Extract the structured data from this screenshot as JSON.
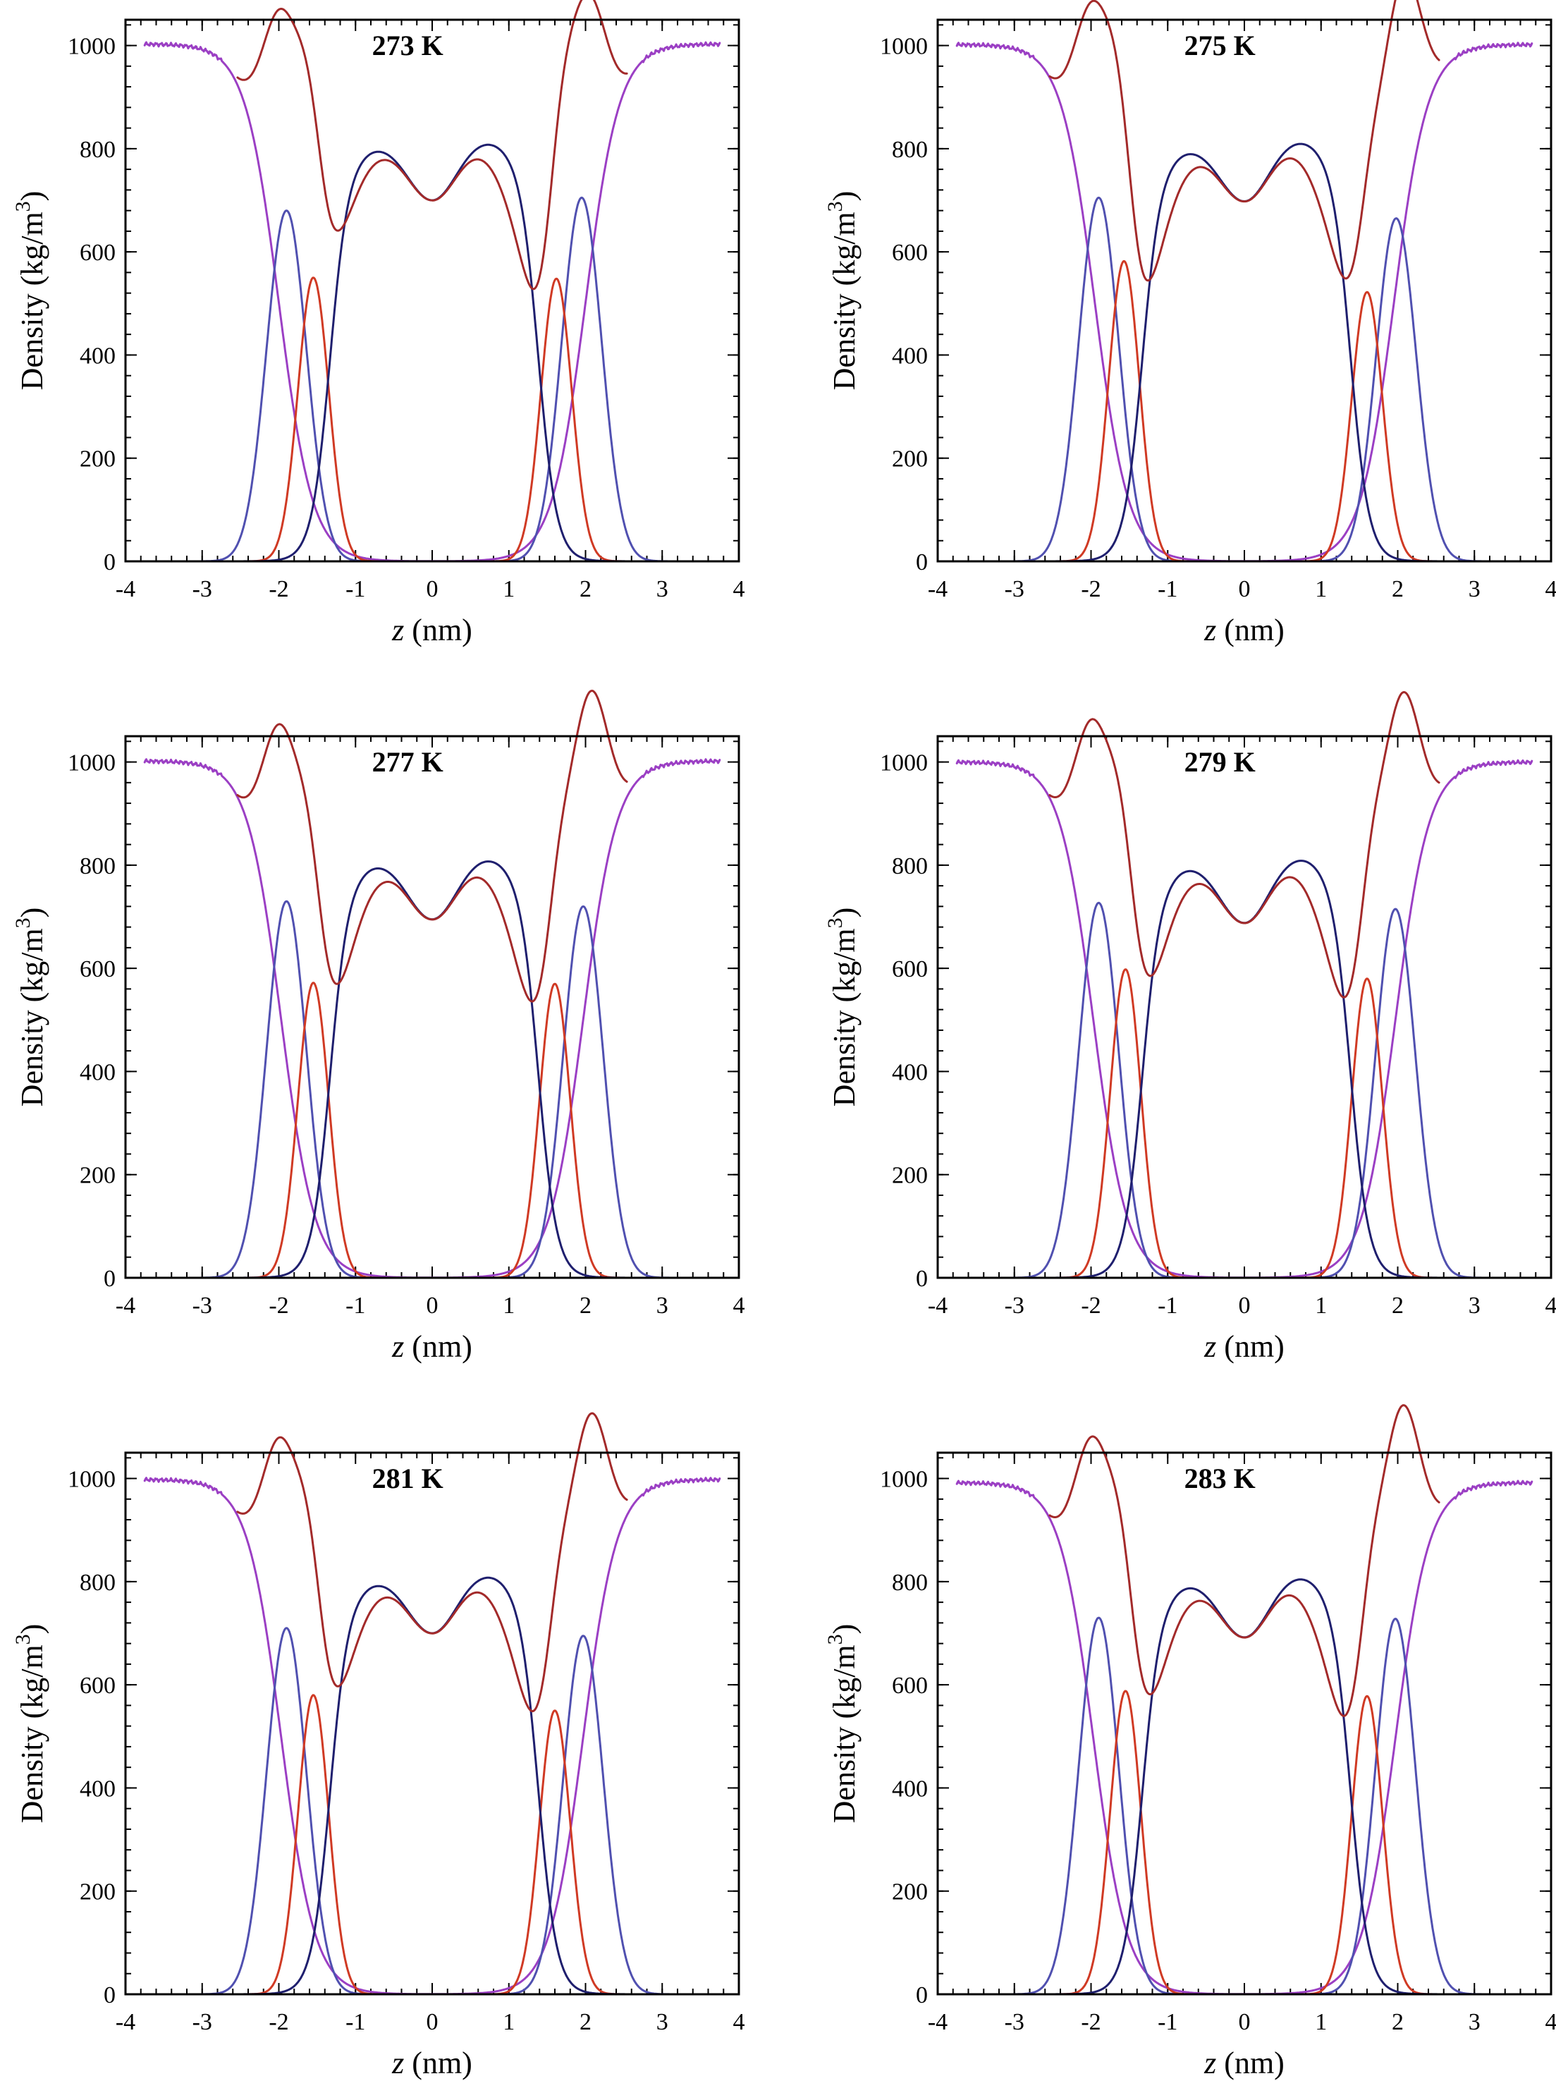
{
  "chart_data": [
    {
      "type": "line",
      "title": "273 K",
      "xlabel": "z (nm)",
      "ylabel": "Density (kg/m3)",
      "xlim": [
        -4,
        4
      ],
      "ylim": [
        0,
        1050
      ],
      "xticks": [
        "-4",
        "-3",
        "-2",
        "-1",
        "0",
        "1",
        "2",
        "3",
        "4"
      ],
      "yticks": [
        "0",
        "200",
        "400",
        "600",
        "800",
        "1000"
      ],
      "params": {
        "water_bulk": 1003,
        "water_half_left": -2.0,
        "water_half_right": 2.0,
        "water_width": 0.22,
        "total_peak_left": 1032,
        "total_peak_right": 1017,
        "head_left": [
          -1.9,
          680
        ],
        "head_right": [
          1.95,
          705
        ],
        "mid_left": [
          -1.55,
          550
        ],
        "mid_right": [
          1.62,
          548
        ],
        "tail_shoulder_left": 815,
        "tail_shoulder_right": 828,
        "tail_center": 700
      }
    },
    {
      "type": "line",
      "title": "275 K",
      "xlabel": "z (nm)",
      "ylabel": "Density (kg/m3)",
      "xlim": [
        -4,
        4
      ],
      "ylim": [
        0,
        1050
      ],
      "xticks": [
        "-4",
        "-3",
        "-2",
        "-1",
        "0",
        "1",
        "2",
        "3",
        "4"
      ],
      "yticks": [
        "0",
        "200",
        "400",
        "600",
        "800",
        "1000"
      ],
      "params": {
        "water_bulk": 1002,
        "water_half_left": -1.95,
        "water_half_right": 1.95,
        "water_width": 0.22,
        "total_peak_left": 1030,
        "total_peak_right": 1015,
        "head_left": [
          -1.9,
          705
        ],
        "head_right": [
          1.98,
          665
        ],
        "mid_left": [
          -1.57,
          582
        ],
        "mid_right": [
          1.6,
          522
        ],
        "tail_shoulder_left": 810,
        "tail_shoulder_right": 830,
        "tail_center": 698
      }
    },
    {
      "type": "line",
      "title": "277 K",
      "xlabel": "z (nm)",
      "ylabel": "Density (kg/m3)",
      "xlim": [
        -4,
        4
      ],
      "ylim": [
        0,
        1050
      ],
      "xticks": [
        "-4",
        "-3",
        "-2",
        "-1",
        "0",
        "1",
        "2",
        "3",
        "4"
      ],
      "yticks": [
        "0",
        "200",
        "400",
        "600",
        "800",
        "1000"
      ],
      "params": {
        "water_bulk": 1002,
        "water_half_left": -1.97,
        "water_half_right": 1.97,
        "water_width": 0.22,
        "total_peak_left": 1003,
        "total_peak_right": 1017,
        "head_left": [
          -1.9,
          730
        ],
        "head_right": [
          1.97,
          720
        ],
        "mid_left": [
          -1.55,
          572
        ],
        "mid_right": [
          1.6,
          570
        ],
        "tail_shoulder_left": 815,
        "tail_shoulder_right": 828,
        "tail_center": 695
      }
    },
    {
      "type": "line",
      "title": "279 K",
      "xlabel": "z (nm)",
      "ylabel": "Density (kg/m3)",
      "xlim": [
        -4,
        4
      ],
      "ylim": [
        0,
        1050
      ],
      "xticks": [
        "-4",
        "-3",
        "-2",
        "-1",
        "0",
        "1",
        "2",
        "3",
        "4"
      ],
      "yticks": [
        "0",
        "200",
        "400",
        "600",
        "800",
        "1000"
      ],
      "params": {
        "water_bulk": 1000,
        "water_half_left": -1.97,
        "water_half_right": 1.97,
        "water_width": 0.22,
        "total_peak_left": 1022,
        "total_peak_right": 1017,
        "head_left": [
          -1.9,
          727
        ],
        "head_right": [
          1.97,
          715
        ],
        "mid_left": [
          -1.55,
          598
        ],
        "mid_right": [
          1.6,
          580
        ],
        "tail_shoulder_left": 810,
        "tail_shoulder_right": 830,
        "tail_center": 688
      }
    },
    {
      "type": "line",
      "title": "281 K",
      "xlabel": "z (nm)",
      "ylabel": "Density (kg/m3)",
      "xlim": [
        -4,
        4
      ],
      "ylim": [
        0,
        1050
      ],
      "xticks": [
        "-4",
        "-3",
        "-2",
        "-1",
        "0",
        "1",
        "2",
        "3",
        "4"
      ],
      "yticks": [
        "0",
        "200",
        "400",
        "600",
        "800",
        "1000"
      ],
      "params": {
        "water_bulk": 998,
        "water_half_left": -1.97,
        "water_half_right": 1.97,
        "water_width": 0.22,
        "total_peak_left": 1022,
        "total_peak_right": 1013,
        "head_left": [
          -1.9,
          710
        ],
        "head_right": [
          1.97,
          695
        ],
        "mid_left": [
          -1.55,
          580
        ],
        "mid_right": [
          1.6,
          550
        ],
        "tail_shoulder_left": 812,
        "tail_shoulder_right": 828,
        "tail_center": 700
      }
    },
    {
      "type": "line",
      "title": "283 K",
      "xlabel": "z (nm)",
      "ylabel": "Density (kg/m3)",
      "xlim": [
        -4,
        4
      ],
      "ylim": [
        0,
        1050
      ],
      "xticks": [
        "-4",
        "-3",
        "-2",
        "-1",
        "0",
        "1",
        "2",
        "3",
        "4"
      ],
      "yticks": [
        "0",
        "200",
        "400",
        "600",
        "800",
        "1000"
      ],
      "params": {
        "water_bulk": 992,
        "water_half_left": -1.97,
        "water_half_right": 1.97,
        "water_width": 0.22,
        "total_peak_left": 1020,
        "total_peak_right": 1025,
        "head_left": [
          -1.9,
          730
        ],
        "head_right": [
          1.97,
          728
        ],
        "mid_left": [
          -1.55,
          588
        ],
        "mid_right": [
          1.6,
          578
        ],
        "tail_shoulder_left": 808,
        "tail_shoulder_right": 825,
        "tail_center": 692
      }
    }
  ],
  "series_names": [
    "water",
    "headgroup",
    "glycerol",
    "tails",
    "total"
  ],
  "series_colors": {
    "water": "#9b3fc4",
    "headgroup": "#5050b0",
    "glycerol": "#d03a24",
    "tails": "#1f1f6e",
    "total": "#a32a2a"
  },
  "axis_title_parts": {
    "ylabel_main": "Density (kg/m",
    "ylabel_sup": "3",
    "ylabel_close": ")",
    "xlabel_var": "z",
    "xlabel_unit": " (nm)"
  }
}
